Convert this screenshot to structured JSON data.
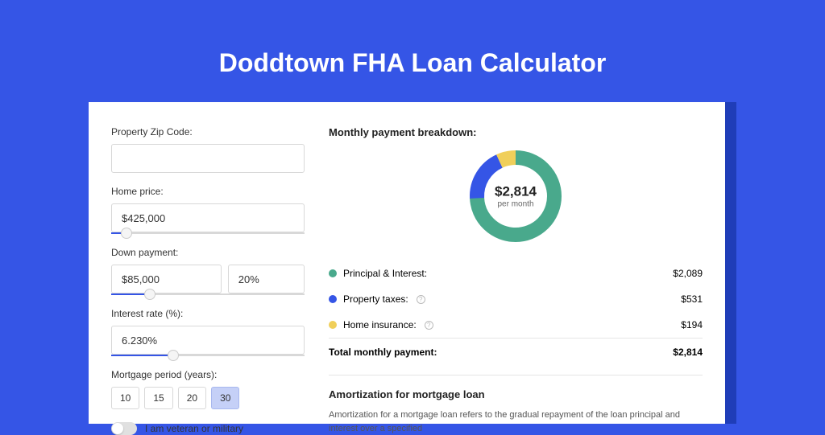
{
  "title": "Doddtown FHA Loan Calculator",
  "colors": {
    "page_bg": "#3555e6",
    "shadow_bg": "#1f3db8",
    "card_bg": "#ffffff",
    "accent": "#3555e6"
  },
  "form": {
    "zip": {
      "label": "Property Zip Code:",
      "value": ""
    },
    "home_price": {
      "label": "Home price:",
      "value": "$425,000",
      "slider_percent": 8
    },
    "down_payment": {
      "label": "Down payment:",
      "amount": "$85,000",
      "percent": "20%",
      "slider_percent": 20
    },
    "interest_rate": {
      "label": "Interest rate (%):",
      "value": "6.230%",
      "slider_percent": 32
    },
    "mortgage_period": {
      "label": "Mortgage period (years):",
      "options": [
        "10",
        "15",
        "20",
        "30"
      ],
      "active_index": 3
    },
    "veteran": {
      "label": "I am veteran or military",
      "checked": false
    }
  },
  "breakdown": {
    "title": "Monthly payment breakdown:",
    "donut": {
      "value": "$2,814",
      "label": "per month",
      "slices": [
        {
          "label": "Principal & Interest",
          "value": 2089,
          "color": "#49a98c",
          "percent": 74.2
        },
        {
          "label": "Property taxes",
          "value": 531,
          "color": "#3555e6",
          "percent": 18.9
        },
        {
          "label": "Home insurance",
          "value": 194,
          "color": "#f0cf5a",
          "percent": 6.9
        }
      ],
      "stroke_width": 18
    },
    "rows": [
      {
        "dot_color": "#49a98c",
        "label": "Principal & Interest:",
        "has_info": false,
        "value": "$2,089"
      },
      {
        "dot_color": "#3555e6",
        "label": "Property taxes:",
        "has_info": true,
        "value": "$531"
      },
      {
        "dot_color": "#f0cf5a",
        "label": "Home insurance:",
        "has_info": true,
        "value": "$194"
      }
    ],
    "total": {
      "label": "Total monthly payment:",
      "value": "$2,814"
    }
  },
  "amortization": {
    "title": "Amortization for mortgage loan",
    "text": "Amortization for a mortgage loan refers to the gradual repayment of the loan principal and interest over a specified"
  }
}
